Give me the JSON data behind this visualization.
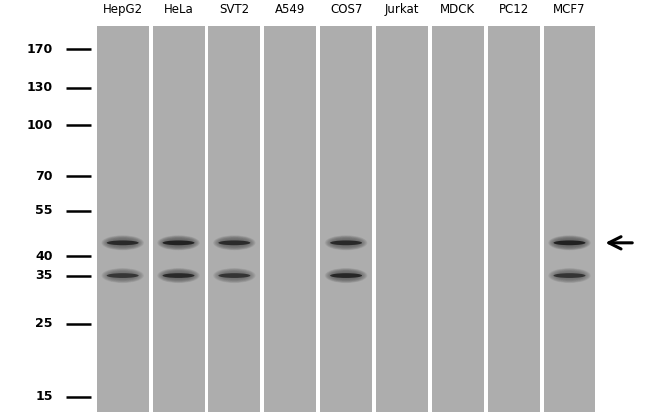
{
  "lane_labels": [
    "HepG2",
    "HeLa",
    "SVT2",
    "A549",
    "COS7",
    "Jurkat",
    "MDCK",
    "PC12",
    "MCF7"
  ],
  "mw_markers": [
    170,
    130,
    100,
    70,
    55,
    40,
    35,
    25,
    15
  ],
  "lane_color": "#adadad",
  "sep_color": "#ffffff",
  "band_color": "#111111",
  "label_fontsize": 8.5,
  "marker_fontsize": 9,
  "upper_bands": {
    "lanes": [
      0,
      1,
      2,
      4,
      8
    ],
    "mw": 44,
    "intensities": [
      0.82,
      0.9,
      0.8,
      0.82,
      0.92
    ]
  },
  "lower_bands": {
    "lanes": [
      0,
      1,
      2,
      4,
      8
    ],
    "mw": 35,
    "intensities": [
      0.7,
      0.82,
      0.72,
      0.85,
      0.72
    ]
  },
  "mw_min": 13,
  "mw_max": 230,
  "arrow_mw": 44
}
